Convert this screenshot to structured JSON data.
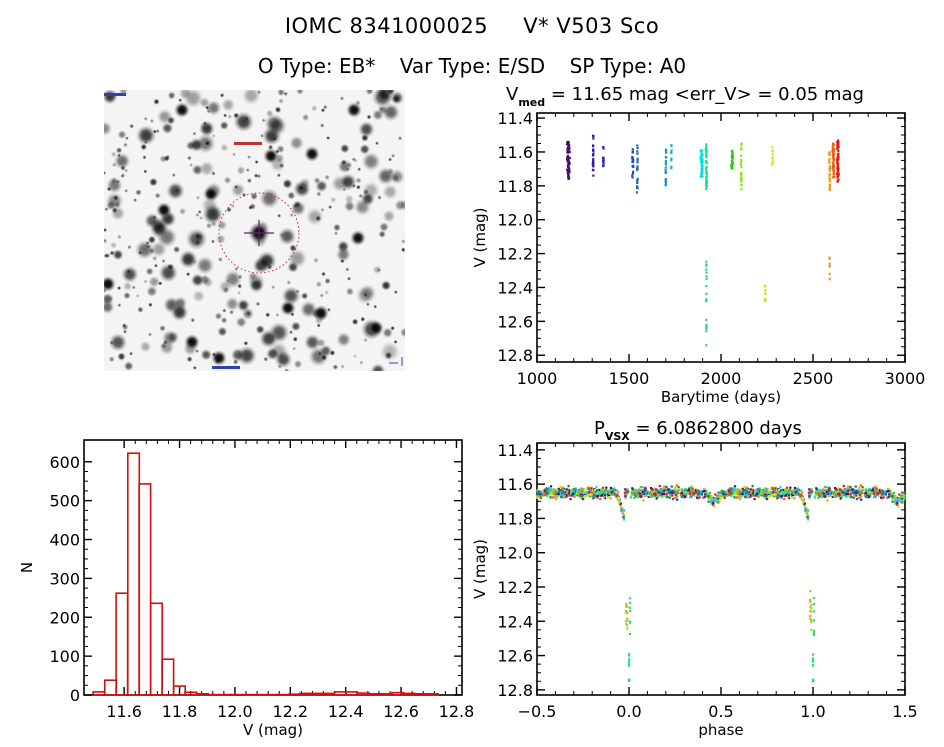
{
  "header": {
    "catalog_id": "IOMC 8341000025",
    "star_name": "V* V503 Sco",
    "o_type": "O Type: EB*",
    "var_type": "Var Type: E/SD",
    "sp_type": "SP Type: A0"
  },
  "image_panel": {
    "description": "sky-field-cutout",
    "circle_color": "#d02020",
    "crosshair_color": "#6a1a7a"
  },
  "chart_data": [
    {
      "id": "lightcurve",
      "type": "scatter",
      "title_main": "V",
      "title_sub": "med",
      "title_rest": " = 11.65 mag <err_V> = 0.05 mag",
      "xlabel": "Barytime (days)",
      "ylabel": "V (mag)",
      "xlim": [
        1000,
        3000
      ],
      "ylim": [
        12.84,
        11.37
      ],
      "y_inverted": true,
      "xticks": [
        1000,
        1500,
        2000,
        2500,
        3000
      ],
      "xtick_labels": [
        "1000",
        "1500",
        "2000",
        "2500",
        "3000"
      ],
      "yticks": [
        11.4,
        11.6,
        11.8,
        12.0,
        12.2,
        12.4,
        12.6,
        12.8
      ],
      "ytick_labels": [
        "11.4",
        "11.6",
        "11.8",
        "12.0",
        "12.2",
        "12.4",
        "12.6",
        "12.8"
      ],
      "grid": false,
      "color_scale": "rainbow by time (purple→red)",
      "groups": [
        {
          "t": 1170,
          "t_spread": 12,
          "v_min": 11.52,
          "v_max": 11.76,
          "color": "#4a0a6e",
          "n": 60
        },
        {
          "t": 1305,
          "t_spread": 3,
          "v_min": 11.5,
          "v_max": 11.74,
          "color": "#3a1a9a",
          "n": 25
        },
        {
          "t": 1360,
          "t_spread": 3,
          "v_min": 11.56,
          "v_max": 11.69,
          "color": "#2a2ab8",
          "n": 15
        },
        {
          "t": 1520,
          "t_spread": 6,
          "v_min": 11.58,
          "v_max": 11.76,
          "color": "#1a50c8",
          "n": 20
        },
        {
          "t": 1545,
          "t_spread": 3,
          "v_min": 11.52,
          "v_max": 11.84,
          "color": "#1a6ab0",
          "n": 20
        },
        {
          "t": 1700,
          "t_spread": 3,
          "v_min": 11.55,
          "v_max": 11.8,
          "color": "#1a90c0",
          "n": 18
        },
        {
          "t": 1730,
          "t_spread": 3,
          "v_min": 11.55,
          "v_max": 11.7,
          "color": "#20b0d0",
          "n": 10
        },
        {
          "t": 1895,
          "t_spread": 10,
          "v_min": 11.58,
          "v_max": 11.75,
          "color": "#00e0e0",
          "n": 40
        },
        {
          "t": 1920,
          "t_spread": 5,
          "v_min": 11.54,
          "v_max": 11.82,
          "color": "#20e090",
          "n": 45
        },
        {
          "t": 1920,
          "t_spread": 2,
          "v_min": 12.24,
          "v_max": 12.48,
          "color": "#30d880",
          "n": 14
        },
        {
          "t": 1920,
          "t_spread": 2,
          "v_min": 12.58,
          "v_max": 12.66,
          "color": "#30d880",
          "n": 6
        },
        {
          "t": 1920,
          "t_spread": 1,
          "v_min": 12.74,
          "v_max": 12.74,
          "color": "#30d880",
          "n": 1
        },
        {
          "t": 2060,
          "t_spread": 8,
          "v_min": 11.58,
          "v_max": 11.7,
          "color": "#30c820",
          "n": 30
        },
        {
          "t": 2110,
          "t_spread": 3,
          "v_min": 11.55,
          "v_max": 11.82,
          "color": "#90e020",
          "n": 22
        },
        {
          "t": 2240,
          "t_spread": 4,
          "v_min": 12.38,
          "v_max": 12.48,
          "color": "#c8e020",
          "n": 10
        },
        {
          "t": 2280,
          "t_spread": 4,
          "v_min": 11.57,
          "v_max": 11.68,
          "color": "#e8e020",
          "n": 12
        },
        {
          "t": 2590,
          "t_spread": 4,
          "v_min": 11.58,
          "v_max": 11.84,
          "color": "#e8a020",
          "n": 30
        },
        {
          "t": 2590,
          "t_spread": 2,
          "v_min": 12.22,
          "v_max": 12.4,
          "color": "#e0a030",
          "n": 8
        },
        {
          "t": 2610,
          "t_spread": 8,
          "v_min": 11.55,
          "v_max": 11.75,
          "color": "#f06010",
          "n": 50
        },
        {
          "t": 2635,
          "t_spread": 8,
          "v_min": 11.53,
          "v_max": 11.78,
          "color": "#f01010",
          "n": 60
        }
      ]
    },
    {
      "id": "histogram",
      "type": "bar",
      "title": "",
      "xlabel": "V (mag)",
      "ylabel": "N",
      "xlim": [
        11.455,
        12.82
      ],
      "ylim": [
        0,
        656
      ],
      "xticks": [
        11.6,
        11.8,
        12.0,
        12.2,
        12.4,
        12.6,
        12.8
      ],
      "xtick_labels": [
        "11.6",
        "11.8",
        "12.0",
        "12.2",
        "12.4",
        "12.6",
        "12.8"
      ],
      "yticks": [
        0,
        100,
        200,
        300,
        400,
        500,
        600
      ],
      "ytick_labels": [
        "0",
        "100",
        "200",
        "300",
        "400",
        "500",
        "600"
      ],
      "bar_color": "#d01010",
      "bin_width": 0.0415,
      "bin_starts": [
        11.488,
        11.53,
        11.571,
        11.613,
        11.654,
        11.696,
        11.737,
        11.779,
        11.82,
        11.862,
        11.903,
        11.945,
        11.986,
        12.028,
        12.069,
        12.111,
        12.152,
        12.194,
        12.235,
        12.277,
        12.318,
        12.36,
        12.401,
        12.443,
        12.484,
        12.526,
        12.567,
        12.609,
        12.65,
        12.692
      ],
      "values": [
        8,
        38,
        262,
        622,
        543,
        236,
        92,
        23,
        7,
        3,
        1,
        1,
        1,
        1,
        1,
        1,
        1,
        2,
        4,
        4,
        4,
        8,
        8,
        5,
        3,
        3,
        6,
        4,
        3,
        3
      ]
    },
    {
      "id": "phased",
      "type": "scatter",
      "title_main": "P",
      "title_sub": "VSX",
      "title_rest": " = 6.0862800 days",
      "xlabel": "phase",
      "ylabel": "V (mag)",
      "xlim": [
        -0.5,
        1.5
      ],
      "ylim": [
        12.83,
        11.36
      ],
      "y_inverted": true,
      "xticks": [
        -0.5,
        0.0,
        0.5,
        1.0,
        1.5
      ],
      "xtick_labels": [
        "-0.5",
        "0.0",
        "0.5",
        "1.0",
        "1.5"
      ],
      "yticks": [
        11.4,
        11.6,
        11.8,
        12.0,
        12.2,
        12.4,
        12.6,
        12.8
      ],
      "ytick_labels": [
        "11.4",
        "11.6",
        "11.8",
        "12.0",
        "12.2",
        "12.4",
        "12.6",
        "12.8"
      ],
      "period_days": 6.08628,
      "out_of_eclipse_mag": 11.65,
      "out_of_eclipse_scatter": 0.05,
      "primary_eclipse": {
        "phase": 0.0,
        "v_min": 12.22,
        "v_max": 12.75
      },
      "secondary_dip": {
        "phase": 0.46,
        "depth_mag": 0.05
      },
      "pre_eclipse_dip": {
        "phase": -0.04,
        "v_max": 11.84
      },
      "palette": [
        "#4a0a6e",
        "#2a2ab8",
        "#1a6ab0",
        "#20b0d0",
        "#00e0e0",
        "#20e090",
        "#30c820",
        "#90e020",
        "#e8e020",
        "#e8a020",
        "#f06010",
        "#f01010"
      ]
    }
  ]
}
